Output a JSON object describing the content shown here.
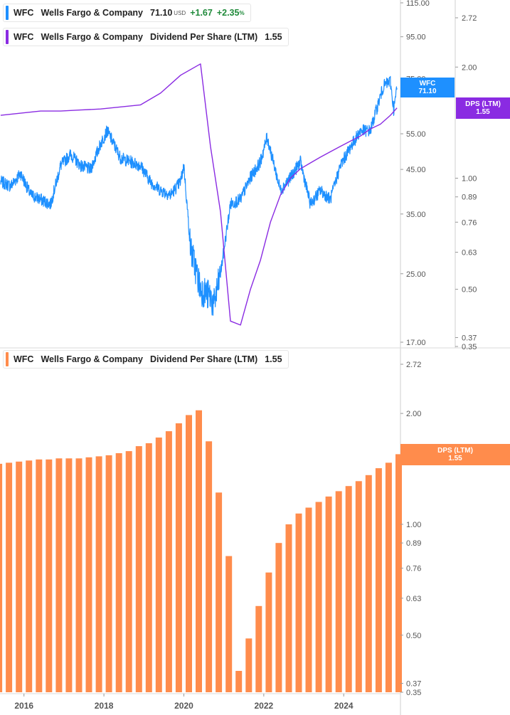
{
  "legend_price": {
    "ticker": "WFC",
    "company": "Wells Fargo & Company",
    "price": "71.10",
    "currency": "USD",
    "change": "+1.67",
    "change_pct": "+2.35",
    "pct_sign": "%",
    "color": "#1e90ff"
  },
  "legend_dps_top": {
    "ticker": "WFC",
    "company": "Wells Fargo & Company",
    "metric": "Dividend Per Share (LTM)",
    "value": "1.55",
    "color": "#8a2be2"
  },
  "legend_dps_bottom": {
    "ticker": "WFC",
    "company": "Wells Fargo & Company",
    "metric": "Dividend Per Share (LTM)",
    "value": "1.55",
    "color": "#ff8c4c"
  },
  "tags": {
    "price_name": "WFC",
    "price_value": "71.10",
    "dps_top_name": "DPS (LTM)",
    "dps_top_value": "1.55",
    "dps_bottom_name": "DPS (LTM)",
    "dps_bottom_value": "1.55"
  },
  "chart_data": [
    {
      "type": "line",
      "scale": "log",
      "series": [
        {
          "name": "WFC",
          "color": "#1e90ff",
          "x": [
            "2015-06",
            "2015-09",
            "2015-12",
            "2016-03",
            "2016-06",
            "2016-09",
            "2016-12",
            "2017-03",
            "2017-06",
            "2017-09",
            "2017-12",
            "2018-02",
            "2018-06",
            "2018-09",
            "2018-12",
            "2019-03",
            "2019-06",
            "2019-09",
            "2019-12",
            "2020-01",
            "2020-03",
            "2020-06",
            "2020-09",
            "2020-10",
            "2020-12",
            "2021-03",
            "2021-06",
            "2021-09",
            "2021-12",
            "2022-02",
            "2022-06",
            "2022-09",
            "2022-12",
            "2023-03",
            "2023-06",
            "2023-09",
            "2023-12",
            "2024-03",
            "2024-06",
            "2024-09",
            "2024-12",
            "2025-01",
            "2025-03",
            "2025-04",
            "2025-05"
          ],
          "y": [
            42,
            41,
            44,
            39,
            38,
            37,
            46,
            49,
            46,
            45,
            52,
            56,
            48,
            47,
            46,
            42,
            40,
            39,
            42,
            46,
            29,
            23,
            22,
            21,
            25,
            37,
            38,
            43,
            47,
            54,
            40,
            43,
            47,
            37,
            40,
            38,
            46,
            51,
            56,
            56,
            68,
            72,
            74,
            63,
            71.1
          ]
        }
      ],
      "y_ticks": [
        "115.00",
        "95.00",
        "75.00",
        "55.00",
        "45.00",
        "35.00",
        "25.00",
        "17.00"
      ],
      "ylim": [
        17,
        115
      ]
    },
    {
      "type": "line",
      "scale": "log",
      "series": [
        {
          "name": "Dividend Per Share (LTM)",
          "color": "#8a2be2",
          "x": [
            "2015-06",
            "2015-12",
            "2016-06",
            "2016-12",
            "2017-06",
            "2017-12",
            "2018-06",
            "2018-12",
            "2019-06",
            "2019-12",
            "2020-06",
            "2020-09",
            "2020-12",
            "2021-03",
            "2021-06",
            "2021-09",
            "2021-12",
            "2022-03",
            "2022-06",
            "2022-09",
            "2022-12",
            "2023-03",
            "2023-06",
            "2023-09",
            "2023-12",
            "2024-03",
            "2024-06",
            "2024-09",
            "2024-12",
            "2025-03",
            "2025-05"
          ],
          "y": [
            1.48,
            1.5,
            1.52,
            1.52,
            1.53,
            1.54,
            1.56,
            1.58,
            1.7,
            1.9,
            2.04,
            1.22,
            0.81,
            0.41,
            0.4,
            0.5,
            0.6,
            0.76,
            0.9,
            1.0,
            1.06,
            1.1,
            1.14,
            1.18,
            1.22,
            1.26,
            1.3,
            1.36,
            1.4,
            1.48,
            1.55
          ]
        }
      ],
      "y_ticks": [
        "2.72",
        "2.00",
        "1.00",
        "0.89",
        "0.76",
        "0.63",
        "0.50",
        "0.37",
        "0.35"
      ],
      "ylim": [
        0.35,
        2.72
      ]
    },
    {
      "type": "bar",
      "scale": "log",
      "series": [
        {
          "name": "Dividend Per Share (LTM)",
          "color": "#ff8c4c",
          "x": [
            "2015-Q2",
            "2015-Q3",
            "2015-Q4",
            "2016-Q1",
            "2016-Q2",
            "2016-Q3",
            "2016-Q4",
            "2017-Q1",
            "2017-Q2",
            "2017-Q3",
            "2017-Q4",
            "2018-Q1",
            "2018-Q2",
            "2018-Q3",
            "2018-Q4",
            "2019-Q1",
            "2019-Q2",
            "2019-Q3",
            "2019-Q4",
            "2020-Q1",
            "2020-Q2",
            "2020-Q3",
            "2020-Q4",
            "2021-Q1",
            "2021-Q2",
            "2021-Q3",
            "2021-Q4",
            "2022-Q1",
            "2022-Q2",
            "2022-Q3",
            "2022-Q4",
            "2023-Q1",
            "2023-Q2",
            "2023-Q3",
            "2023-Q4",
            "2024-Q1",
            "2024-Q2",
            "2024-Q3",
            "2024-Q4",
            "2025-Q1",
            "2025-Q2"
          ],
          "values": [
            1.46,
            1.47,
            1.48,
            1.49,
            1.5,
            1.5,
            1.51,
            1.51,
            1.51,
            1.52,
            1.53,
            1.54,
            1.56,
            1.58,
            1.63,
            1.66,
            1.72,
            1.79,
            1.88,
            1.98,
            2.04,
            1.68,
            1.22,
            0.82,
            0.4,
            0.49,
            0.6,
            0.74,
            0.89,
            1.0,
            1.07,
            1.11,
            1.15,
            1.19,
            1.23,
            1.27,
            1.31,
            1.36,
            1.42,
            1.47,
            1.55
          ]
        }
      ],
      "x_ticks": [
        "2016",
        "2018",
        "2020",
        "2022",
        "2024"
      ],
      "y_ticks": [
        "2.72",
        "2.00",
        "1.00",
        "0.89",
        "0.76",
        "0.63",
        "0.50",
        "0.37",
        "0.35"
      ],
      "ylim": [
        0.35,
        2.72
      ]
    }
  ]
}
